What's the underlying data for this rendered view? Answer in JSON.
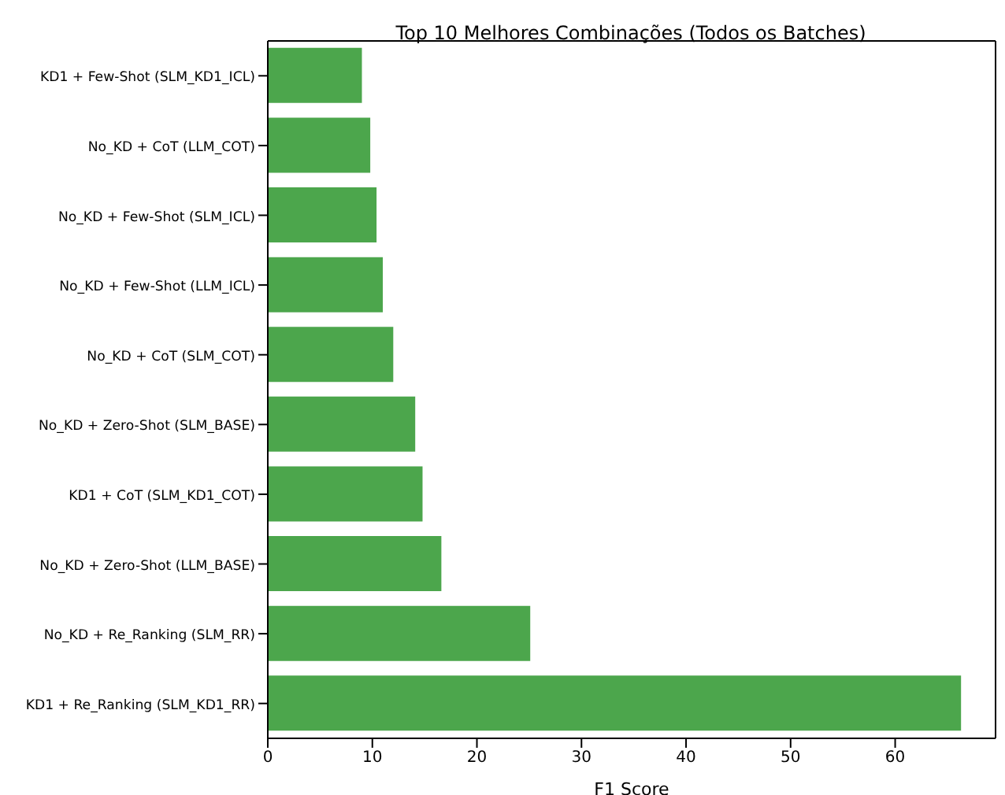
{
  "chart_data": {
    "type": "bar",
    "orientation": "horizontal",
    "title": "Top 10 Melhores Combinações (Todos os Batches)",
    "xlabel": "F1 Score",
    "categories": [
      "KD1 + Few-Shot (SLM_KD1_ICL)",
      "No_KD + CoT (LLM_COT)",
      "No_KD + Few-Shot (SLM_ICL)",
      "No_KD + Few-Shot (LLM_ICL)",
      "No_KD + CoT (SLM_COT)",
      "No_KD + Zero-Shot (SLM_BASE)",
      "KD1 + CoT (SLM_KD1_COT)",
      "No_KD + Zero-Shot (LLM_BASE)",
      "No_KD + Re_Ranking (SLM_RR)",
      "KD1 + Re_Ranking (SLM_KD1_RR)"
    ],
    "values": [
      9.0,
      9.8,
      10.4,
      11.0,
      12.0,
      14.1,
      14.8,
      16.6,
      25.1,
      66.3
    ],
    "color": "#4ca64c",
    "xlim": [
      0,
      69.6
    ],
    "xticks": [
      0,
      10,
      20,
      30,
      40,
      50,
      60
    ]
  }
}
